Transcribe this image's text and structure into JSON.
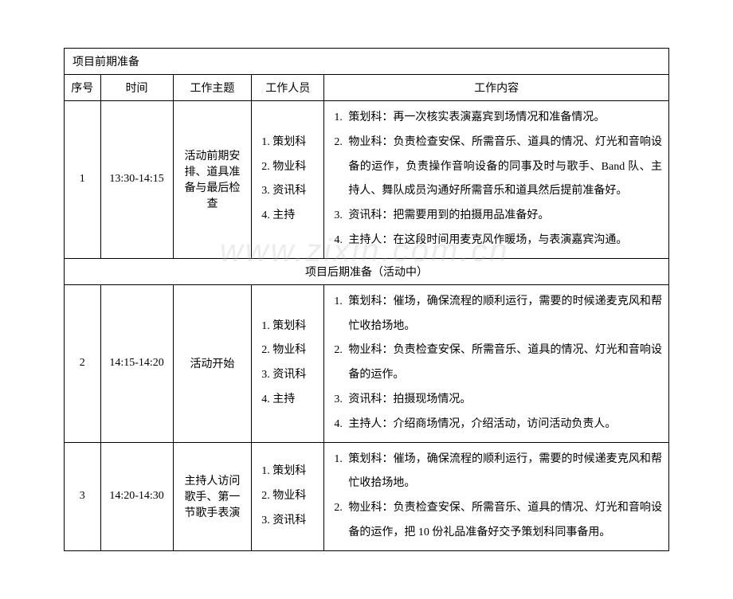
{
  "section_pre": "项目前期准备",
  "section_mid": "项目后期准备（活动中）",
  "headers": {
    "seq": "序号",
    "time": "时间",
    "theme": "工作主题",
    "staff": "工作人员",
    "content": "工作内容"
  },
  "rows": [
    {
      "seq": "1",
      "time": "13:30-14:15",
      "theme": "活动前期安排、道具准备与最后检查",
      "staff": [
        "策划科",
        "物业科",
        "资讯科",
        "主持"
      ],
      "content": [
        "策划科：再一次核实表演嘉宾到场情况和准备情况。",
        "物业科：负责检查安保、所需音乐、道具的情况、灯光和音响设备的运作，负责操作音响设备的同事及时与歌手、Band 队、主持人、舞队成员沟通好所需音乐和道具然后提前准备好。",
        "资讯科：把需要用到的拍摄用品准备好。",
        "主持人：在这段时间用麦克风作暖场，与表演嘉宾沟通。"
      ]
    },
    {
      "seq": "2",
      "time": "14:15-14:20",
      "theme": "活动开始",
      "staff": [
        "策划科",
        "物业科",
        "资讯科",
        "主持"
      ],
      "content": [
        "策划科：催场，确保流程的顺利运行，需要的时候递麦克风和帮忙收拾场地。",
        "物业科：负责检查安保、所需音乐、道具的情况、灯光和音响设备的运作。",
        "资讯科：拍摄现场情况。",
        "主持人：介绍商场情况，介绍活动，访问活动负责人。"
      ]
    },
    {
      "seq": "3",
      "time": "14:20-14:30",
      "theme": "主持人访问歌手、第一节歌手表演",
      "staff": [
        "策划科",
        "物业科",
        "资讯科"
      ],
      "content": [
        "策划科：催场，确保流程的顺利运行，需要的时候递麦克风和帮忙收拾场地。",
        "物业科：负责检查安保、所需音乐、道具的情况、灯光和音响设备的运作，把 10 份礼品准备好交予策划科同事备用。"
      ]
    }
  ],
  "watermark": "www.zixin.com.cn"
}
